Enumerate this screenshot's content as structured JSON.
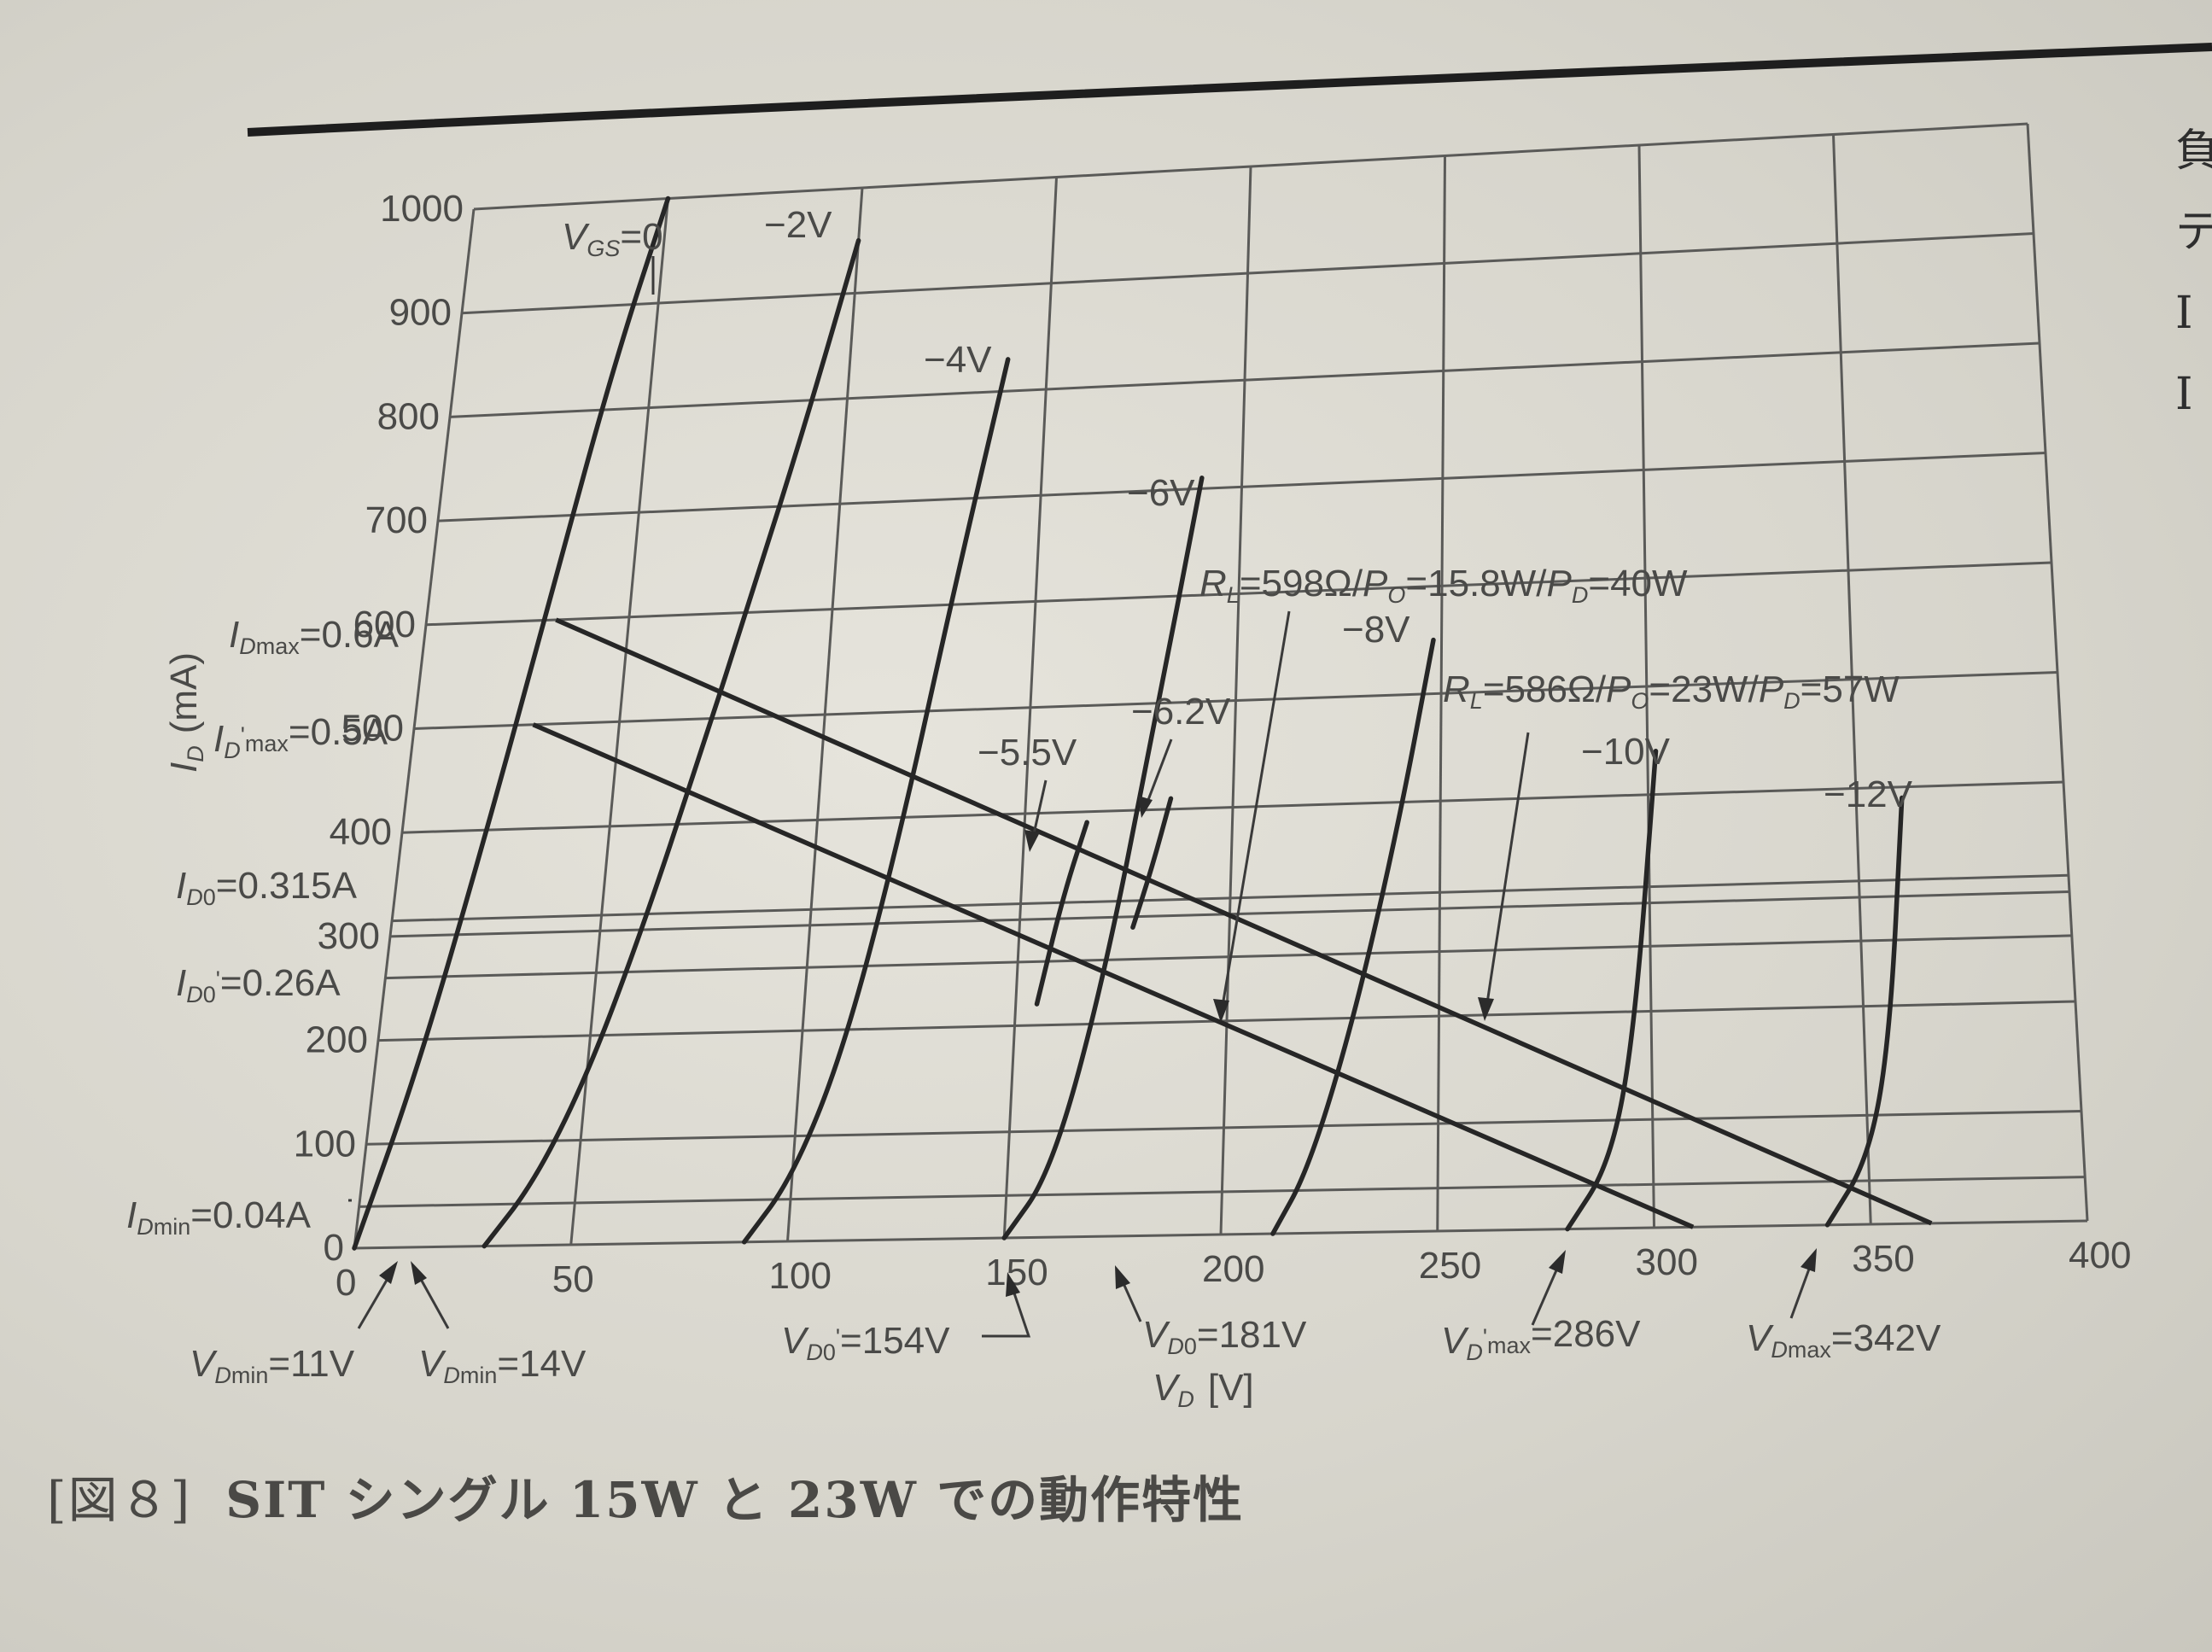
{
  "caption": {
    "label": "[図８]",
    "text": "SIT シングル 15W と 23W での動作特性"
  },
  "side_text": [
    "負",
    "テ",
    "I",
    "I"
  ],
  "colors": {
    "ink": "#262626",
    "grid": "#5a5a58",
    "paper": "#e2e0d8"
  },
  "chart_data": {
    "type": "line",
    "xlabel": {
      "main": "V",
      "sub": "D",
      "unit": "[V]"
    },
    "ylabel": {
      "main": "I",
      "sub": "D",
      "unit": "(mA)"
    },
    "xlim": [
      0,
      400
    ],
    "ylim": [
      0,
      1000
    ],
    "x_ticks": [
      "0",
      "50",
      "100",
      "150",
      "200",
      "250",
      "300",
      "350",
      "400"
    ],
    "y_ticks": [
      "0",
      "100",
      "200",
      "300",
      "400",
      "500",
      "600",
      "700",
      "800",
      "900",
      "1000"
    ],
    "series": [
      {
        "name": "VGS=0",
        "label": "=0",
        "label_main": "V",
        "label_sub": "GS",
        "x": [
          0,
          10,
          20,
          30,
          40,
          50
        ],
        "y": [
          0,
          170,
          390,
          620,
          840,
          1000
        ]
      },
      {
        "name": "−2V",
        "label": "−2V",
        "x": [
          30,
          40,
          50,
          60,
          70,
          80,
          90,
          100
        ],
        "y": [
          0,
          60,
          160,
          300,
          460,
          620,
          780,
          950
        ]
      },
      {
        "name": "−4V",
        "label": "−4V",
        "x": [
          90,
          100,
          110,
          120,
          130,
          140
        ],
        "y": [
          0,
          60,
          180,
          380,
          620,
          830
        ]
      },
      {
        "name": "−6V",
        "label": "−6V",
        "x": [
          150,
          160,
          170,
          180,
          190
        ],
        "y": [
          0,
          60,
          230,
          470,
          710
        ]
      },
      {
        "name": "−8V",
        "label": "−8V",
        "x": [
          212,
          220,
          230,
          240,
          248
        ],
        "y": [
          0,
          60,
          200,
          380,
          550
        ]
      },
      {
        "name": "−10V",
        "label": "−10V",
        "x": [
          280,
          290,
          296,
          302
        ],
        "y": [
          0,
          60,
          180,
          440
        ]
      },
      {
        "name": "−12V",
        "label": "−12V",
        "x": [
          340,
          350,
          356,
          361
        ],
        "y": [
          0,
          60,
          170,
          390
        ]
      },
      {
        "name": "−5.5V",
        "label": "−5.5V",
        "x": [
          155,
          160,
          165
        ],
        "y": [
          220,
          320,
          390
        ]
      },
      {
        "name": "−6.2V",
        "label": "−6.2V",
        "x": [
          177,
          181,
          185
        ],
        "y": [
          290,
          345,
          410
        ]
      }
    ],
    "load_lines": [
      {
        "name": "RL=598Ω/Po=15.8W/PD=40W",
        "x": [
          29,
          309
        ],
        "y": [
          500,
          0
        ]
      },
      {
        "name": "RL=586Ω/Po=23W/PD=57W",
        "x": [
          32,
          364
        ],
        "y": [
          600,
          0
        ]
      }
    ],
    "annotations": {
      "rl1": "=598Ω/",
      "rl1_po": "=15.8W/",
      "rl1_pd": "=40W",
      "rl2": "=586Ω/",
      "rl2_po": "=23W/",
      "rl2_pd": "=57W",
      "rl_main": "R",
      "rl_sub": "L",
      "po_main": "P",
      "po_sub": "O",
      "pd_main": "P",
      "pd_sub": "D",
      "id_main": "I",
      "id_sub": "D",
      "vd_main": "V",
      "vd_sub": "D",
      "max_sub": "max",
      "min_sub": "min",
      "zero_sub": "0",
      "idmax": "=0.6A",
      "idmax2": "=0.5A",
      "id0": "=0.315A",
      "id02": "=0.26A",
      "idmin": "=0.04A",
      "vdmin1": "=11V",
      "vdmin2": "=14V",
      "vd0p": "=154V",
      "vd0": "=181V",
      "vdmaxp": "=286V",
      "vdmax": "=342V",
      "prime": "'"
    }
  }
}
